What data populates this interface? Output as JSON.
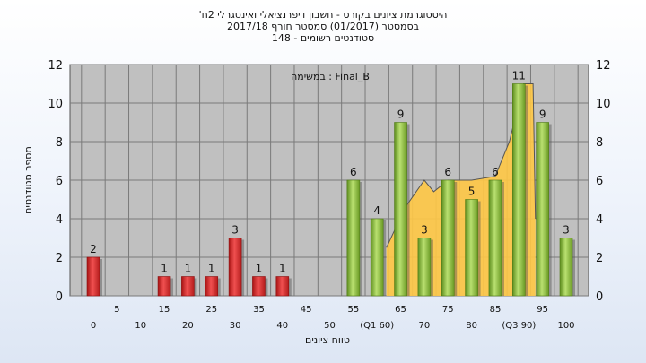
{
  "header": {
    "title_line1": "'היסטוגרמת ציונים בקורס - חשבון דיפרנציאלי ואינטגרלי 2ח",
    "title_line2": "בסמסטר  (01/2017)  סמסטר חורף 2017/18",
    "title_line3": "סטודנטים רשומים - 148"
  },
  "chart_data": {
    "type": "bar",
    "title": "",
    "xlabel": "טווח ציונים",
    "ylabel": "מספר סטודנטים",
    "annotation": "במשימה : Final_B",
    "ylim": [
      0,
      12
    ],
    "y_ticks": [
      0,
      2,
      4,
      6,
      8,
      10,
      12
    ],
    "grid": true,
    "x_tick_labels": [
      {
        "x": 0,
        "label": "0",
        "row": 2
      },
      {
        "x": 5,
        "label": "5",
        "row": 1
      },
      {
        "x": 10,
        "label": "10",
        "row": 2
      },
      {
        "x": 15,
        "label": "15",
        "row": 1
      },
      {
        "x": 20,
        "label": "20",
        "row": 2
      },
      {
        "x": 25,
        "label": "25",
        "row": 1
      },
      {
        "x": 30,
        "label": "30",
        "row": 2
      },
      {
        "x": 35,
        "label": "35",
        "row": 1
      },
      {
        "x": 40,
        "label": "40",
        "row": 2
      },
      {
        "x": 45,
        "label": "45",
        "row": 1
      },
      {
        "x": 50,
        "label": "50",
        "row": 2
      },
      {
        "x": 55,
        "label": "55",
        "row": 1
      },
      {
        "x": 60,
        "label": "(Q1 60)",
        "row": 2
      },
      {
        "x": 65,
        "label": "65",
        "row": 1
      },
      {
        "x": 70,
        "label": "70",
        "row": 2
      },
      {
        "x": 75,
        "label": "75",
        "row": 1
      },
      {
        "x": 80,
        "label": "80",
        "row": 2
      },
      {
        "x": 85,
        "label": "85",
        "row": 1
      },
      {
        "x": 90,
        "label": "(Q3 90)",
        "row": 2
      },
      {
        "x": 95,
        "label": "95",
        "row": 1
      },
      {
        "x": 100,
        "label": "100",
        "row": 2
      }
    ],
    "bars": [
      {
        "x": 0,
        "value": 2,
        "label": "2",
        "color": "#e23a3a"
      },
      {
        "x": 5,
        "value": 0,
        "label": "",
        "color": "#e23a3a"
      },
      {
        "x": 10,
        "value": 0,
        "label": "",
        "color": "#e23a3a"
      },
      {
        "x": 15,
        "value": 1,
        "label": "1",
        "color": "#e23a3a"
      },
      {
        "x": 20,
        "value": 1,
        "label": "1",
        "color": "#e23a3a"
      },
      {
        "x": 25,
        "value": 1,
        "label": "1",
        "color": "#e23a3a"
      },
      {
        "x": 30,
        "value": 3,
        "label": "3",
        "color": "#e23a3a"
      },
      {
        "x": 35,
        "value": 1,
        "label": "1",
        "color": "#e23a3a"
      },
      {
        "x": 40,
        "value": 1,
        "label": "1",
        "color": "#e23a3a"
      },
      {
        "x": 45,
        "value": 0,
        "label": "",
        "color": "#e23a3a"
      },
      {
        "x": 50,
        "value": 0,
        "label": "",
        "color": "#e23a3a"
      },
      {
        "x": 55,
        "value": 6,
        "label": "6",
        "color": "#8cc83c"
      },
      {
        "x": 60,
        "value": 4,
        "label": "4",
        "color": "#8cc83c"
      },
      {
        "x": 65,
        "value": 9,
        "label": "9",
        "color": "#8cc83c"
      },
      {
        "x": 70,
        "value": 3,
        "label": "3",
        "color": "#8cc83c"
      },
      {
        "x": 75,
        "value": 6,
        "label": "6",
        "color": "#8cc83c"
      },
      {
        "x": 80,
        "value": 5,
        "label": "5",
        "color": "#8cc83c"
      },
      {
        "x": 85,
        "value": 6,
        "label": "6",
        "color": "#8cc83c"
      },
      {
        "x": 90,
        "value": 11,
        "label": "11",
        "color": "#8cc83c"
      },
      {
        "x": 95,
        "value": 9,
        "label": "9",
        "color": "#8cc83c"
      },
      {
        "x": 100,
        "value": 3,
        "label": "3",
        "color": "#8cc83c"
      }
    ],
    "area": {
      "color": "#ffc845",
      "points": [
        [
          62,
          0
        ],
        [
          62,
          2.5
        ],
        [
          66,
          4.6
        ],
        [
          70,
          6.0
        ],
        [
          72,
          5.4
        ],
        [
          75,
          6.0
        ],
        [
          80,
          6.0
        ],
        [
          85,
          6.2
        ],
        [
          88,
          8.0
        ],
        [
          91,
          11.0
        ],
        [
          93,
          11.0
        ],
        [
          93.5,
          4.0
        ],
        [
          93.5,
          0
        ]
      ]
    }
  },
  "colors": {
    "plot_background": "#c0c0c0",
    "grid": "#7a7a7a",
    "fail_bar": "#e23a3a",
    "pass_bar": "#8cc83c",
    "quartile_area": "#ffc845"
  }
}
